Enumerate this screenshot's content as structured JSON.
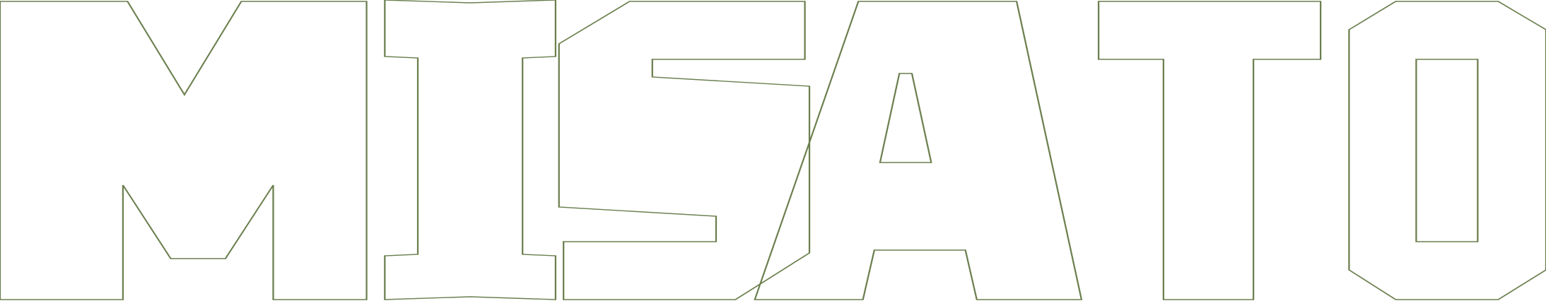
{
  "logo": {
    "wordmark": "MISATO",
    "letters": [
      "M",
      "I",
      "S",
      "A",
      "T",
      "O"
    ],
    "style": "outline",
    "stroke_color": "#6b7f4e",
    "background_color": "#ffffff"
  }
}
